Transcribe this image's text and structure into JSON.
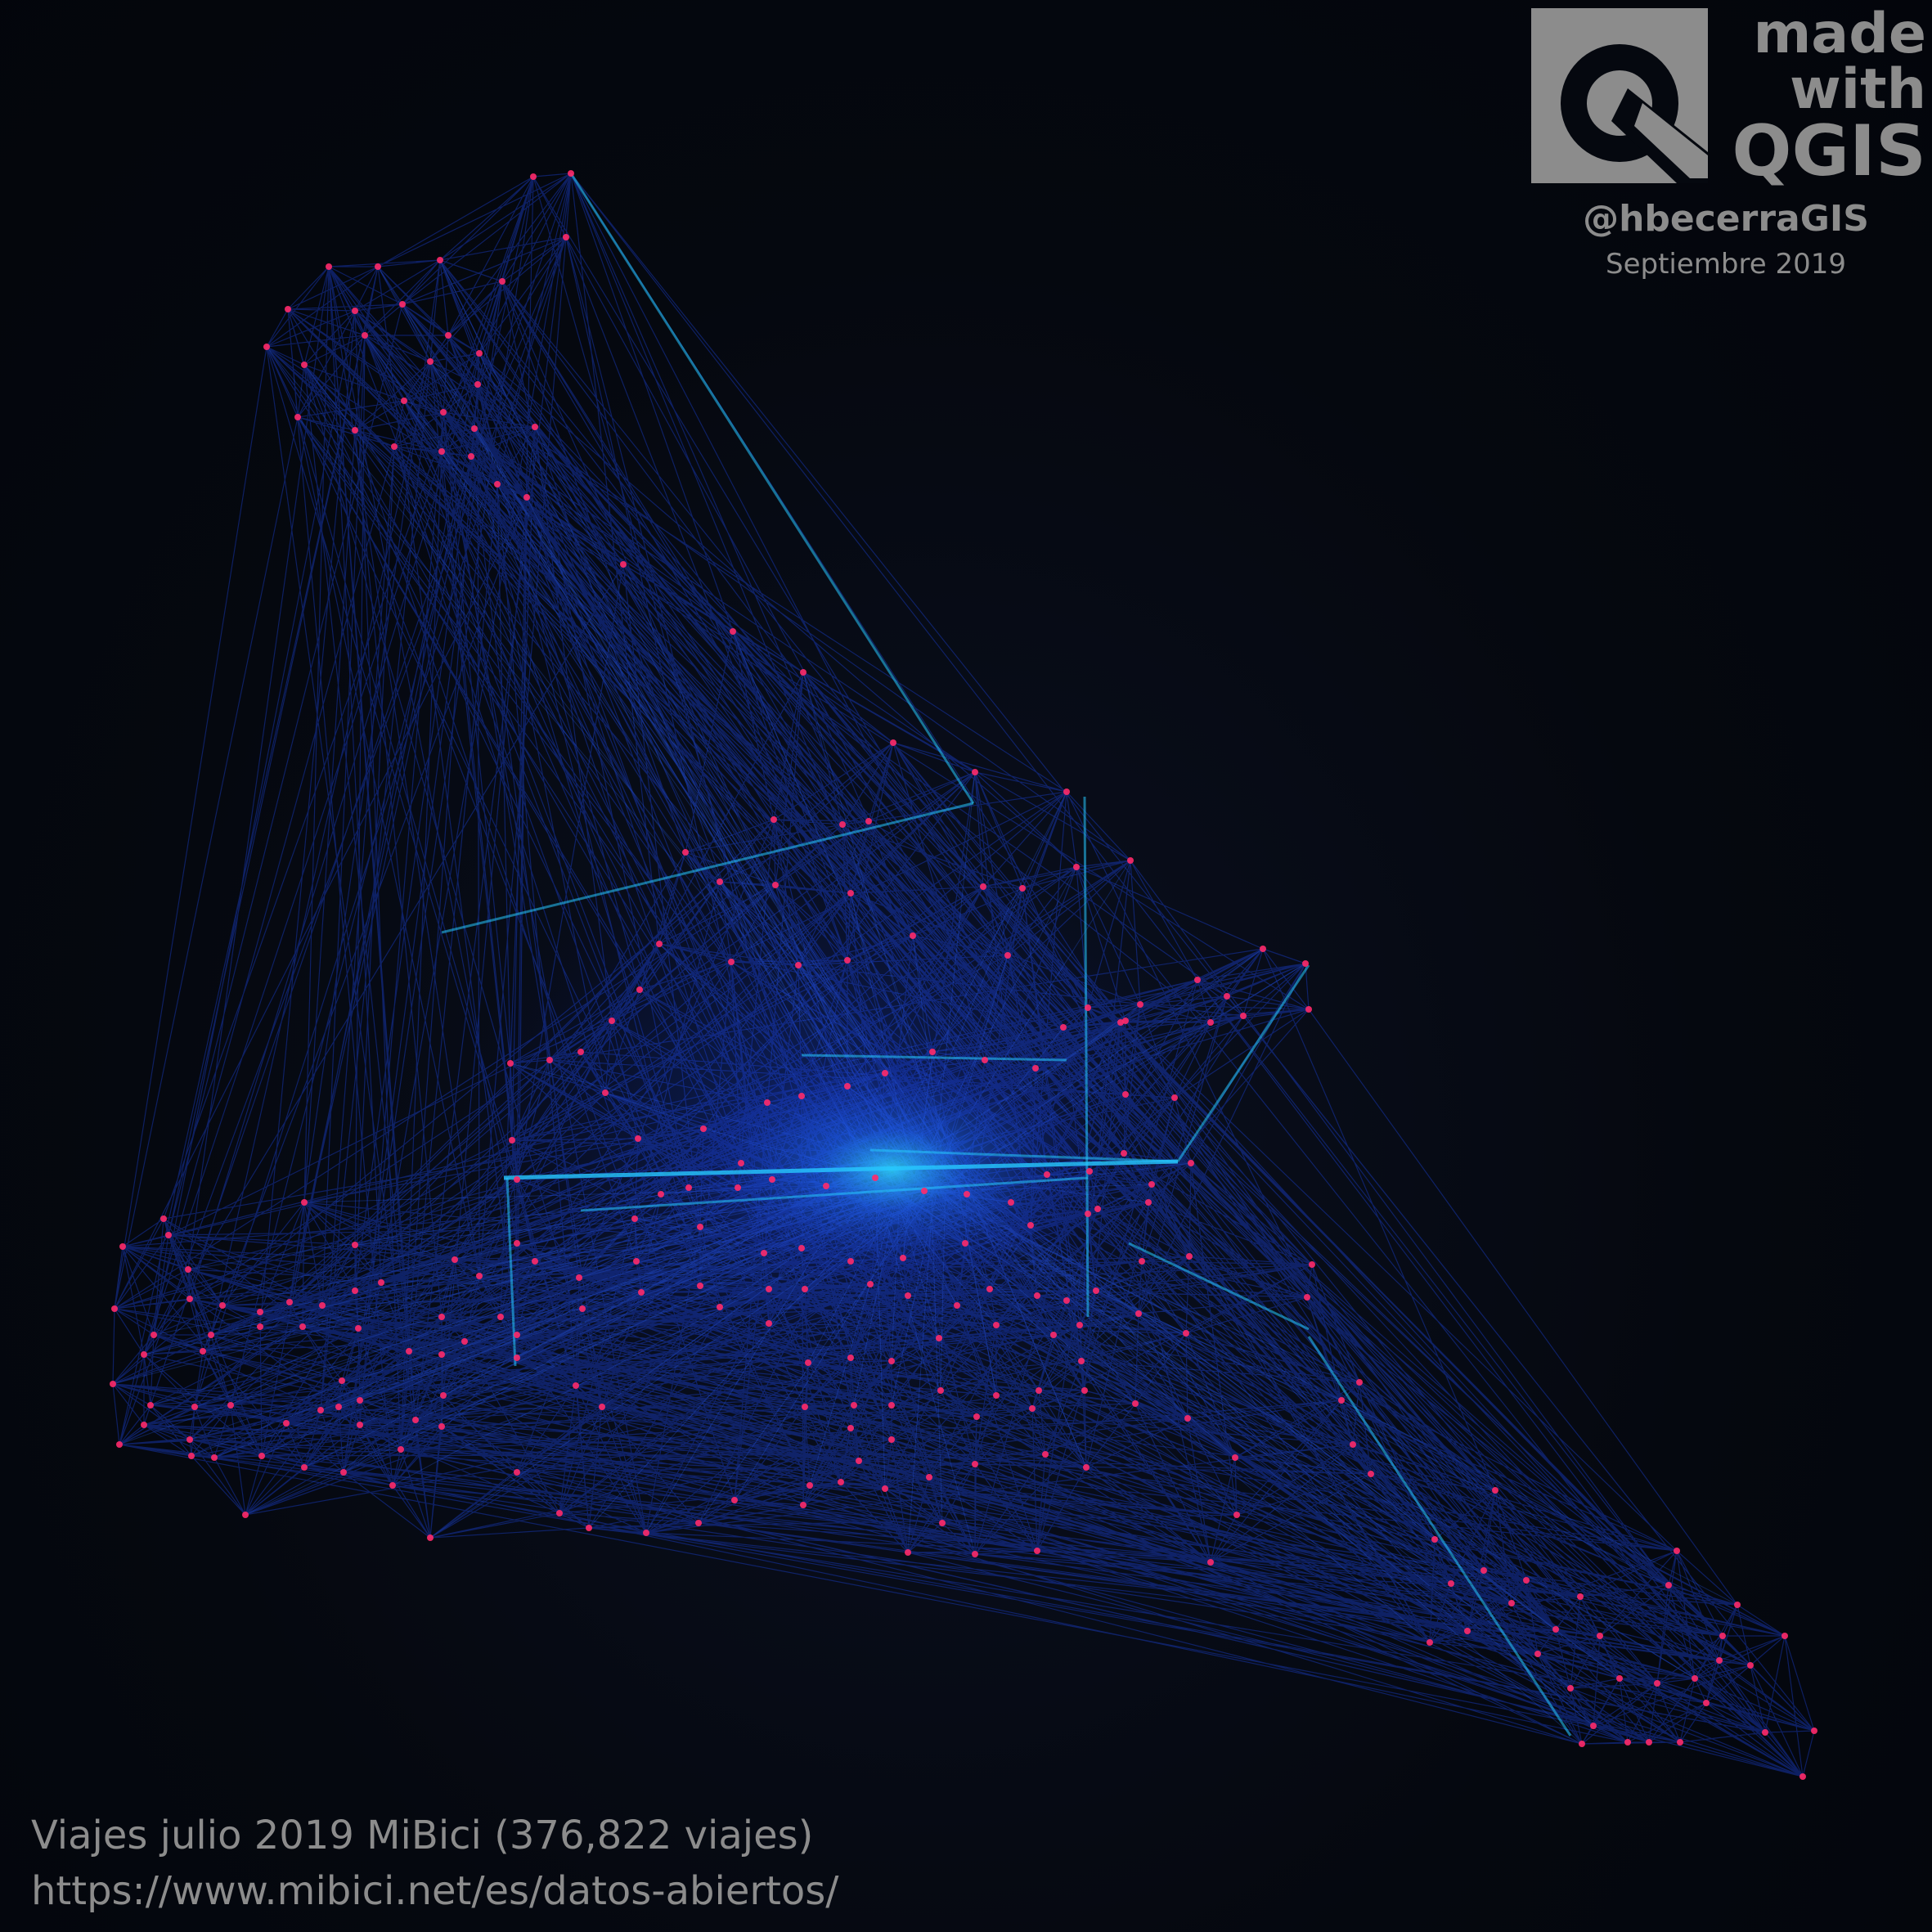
{
  "badge": {
    "line1": "made",
    "line2": "with",
    "line3": "QGIS",
    "handle": "@hbecerraGIS",
    "date": "Septiembre 2019"
  },
  "caption": {
    "title": "Viajes julio 2019 MiBici (376,822 viajes)",
    "url": "https://www.mibici.net/es/datos-abiertos/"
  },
  "colors": {
    "background": "#05080f",
    "flow": "#1f4dff",
    "flow_bright": "#27c8ff",
    "station": "#ff2a6a",
    "text": "#8c8c8c"
  }
}
